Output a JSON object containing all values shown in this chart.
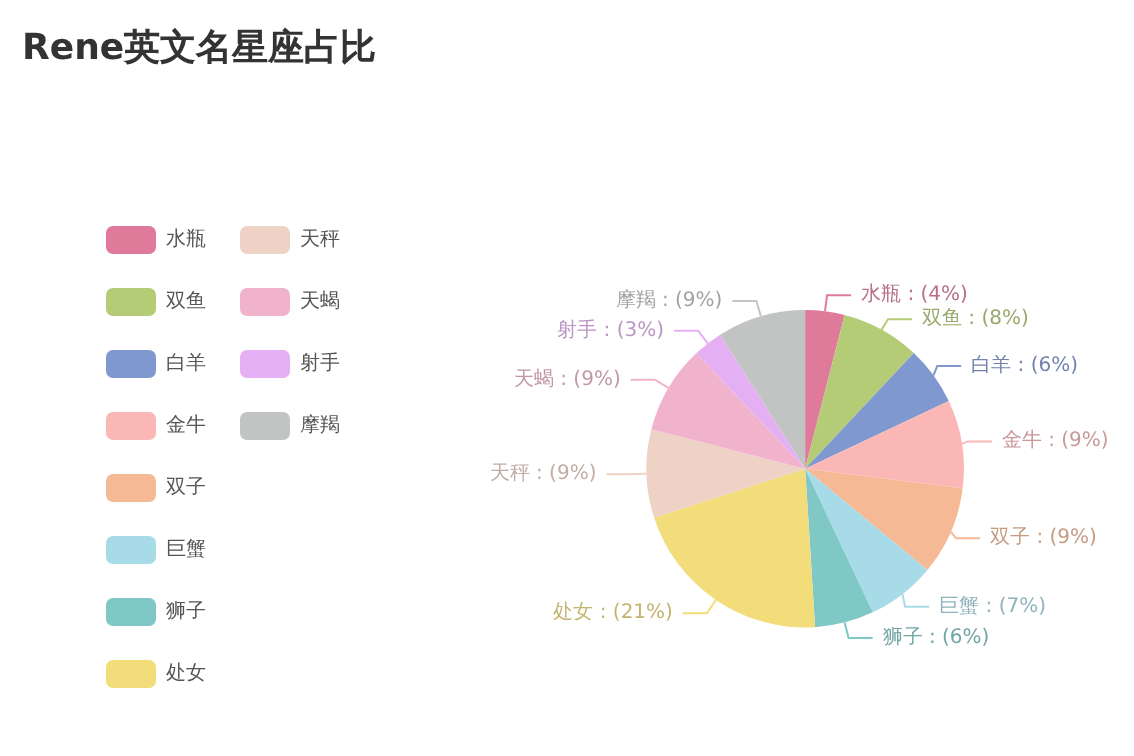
{
  "chart_data": {
    "type": "pie",
    "title": "Rene英文名星座占比",
    "categories": [
      "水瓶",
      "双鱼",
      "白羊",
      "金牛",
      "双子",
      "巨蟹",
      "狮子",
      "处女",
      "天秤",
      "天蝎",
      "射手",
      "摩羯"
    ],
    "values": [
      4,
      8,
      6,
      9,
      9,
      7,
      6,
      21,
      9,
      9,
      3,
      9
    ],
    "colors": [
      "#e07a9a",
      "#b5cc77",
      "#7f98d0",
      "#fbb6b6",
      "#f5b995",
      "#a8dbe8",
      "#7fc8c6",
      "#f3dc7a",
      "#eed2c6",
      "#f1b3cb",
      "#e5b0f3",
      "#c2c4c4"
    ],
    "value_labels": [
      "水瓶 : (4%)",
      "双鱼 : (8%)",
      "白羊 : (6%)",
      "金牛 : (9%)",
      "双子 : (9%)",
      "巨蟹 : (7%)",
      "狮子 : (6%)",
      "处女 : (21%)",
      "天秤 : (9%)",
      "天蝎 : (9%)",
      "射手 : (3%)",
      "摩羯 : (9%)"
    ],
    "legend": "left"
  }
}
